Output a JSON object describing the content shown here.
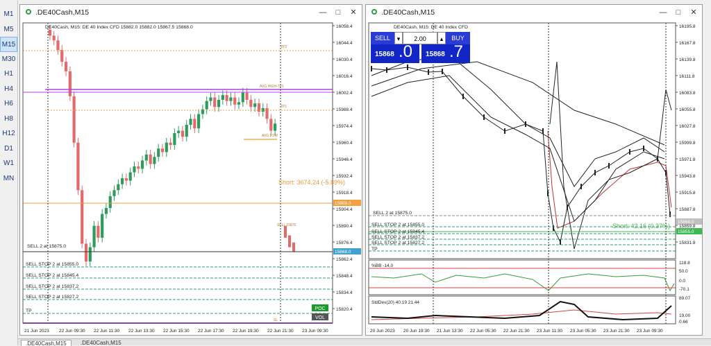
{
  "timeframes": [
    {
      "label": "M1",
      "selected": false
    },
    {
      "label": "M5",
      "selected": false
    },
    {
      "label": "M15",
      "selected": true
    },
    {
      "label": "M30",
      "selected": false
    },
    {
      "label": "H1",
      "selected": false
    },
    {
      "label": "H4",
      "selected": false
    },
    {
      "label": "H6",
      "selected": false
    },
    {
      "label": "H8",
      "selected": false
    },
    {
      "label": "H12",
      "selected": false
    },
    {
      "label": "D1",
      "selected": false
    },
    {
      "label": "W1",
      "selected": false
    },
    {
      "label": "MN",
      "selected": false
    }
  ],
  "window1": {
    "title": ".DE40Cash,M15",
    "info": "DE40Cash, M15:  DE 40 Index CFD   15882.0  15882.0  15867.5  15868.0",
    "price_axis": [
      "16058.4",
      "16044.4",
      "16030.4",
      "16016.4",
      "16002.4",
      "15988.4",
      "15974.4",
      "15960.4",
      "15946.4",
      "15932.4",
      "15918.4",
      "15904.4",
      "15890.4",
      "15876.4",
      "15862.4",
      "15848.4",
      "15834.4",
      "15820.4"
    ],
    "current_price": "15868.0",
    "short_tag": "15909.0",
    "short_label": "Short: 3674.24  (-5.89%)",
    "sell_label": "SELL 2 at 15875.0",
    "orders": [
      "SELL STOP 2 at 15855.0",
      "SELL STOP 2 at 15845.4",
      "SELL STOP 2 at 15837.2",
      "SELL STOP 2 at 15827.2",
      "TP"
    ],
    "tiny_labels": [
      "TP2",
      "AVG.HIGH-TP1",
      "TP1",
      "AVG.LOW",
      "SELL 15875",
      "SL"
    ],
    "badges": {
      "poc": "POC",
      "vol": "VOL"
    },
    "time_axis": [
      "21 Jun 2023",
      "22 Jun 09:30",
      "22 Jun 11:30",
      "22 Jun 13:30",
      "22 Jun 15:30",
      "22 Jun 17:30",
      "22 Jun 19:30",
      "22 Jun 21:30",
      "23 Jun 09:30"
    ],
    "colors": {
      "bull": "#2e9b5e",
      "bear": "#e46a6a",
      "purple": "#b040e0",
      "orange": "#e8a040",
      "teal": "#40c0a0"
    }
  },
  "window2": {
    "title": ".DE40Cash,M15",
    "info": "DE40Cash, M15:  DE 40 Index CFD",
    "price_axis": [
      "16195.8",
      "16167.8",
      "16139.8",
      "16111.8",
      "16083.8",
      "16055.8",
      "16027.8",
      "15999.8",
      "15971.8",
      "15943.8",
      "15915.8",
      "15887.8",
      "15859.8",
      "15831.8"
    ],
    "current_price": "15868.0",
    "short_tag": "15855.0",
    "short_label": "Short: 42.16  (0.37%)",
    "sell_label": "SELL 2 at 15875.0",
    "orders": [
      "SELL STOP 2 at 15855.0",
      "SELL STOP 2 at 15845.4",
      "SELL STOP 2 at 15837.2",
      "SELL STOP 2 at 15827.2",
      "TP"
    ],
    "trade": {
      "sell": "SELL",
      "buy": "BUY",
      "volume": "2.00",
      "sell_small": "15868",
      "sell_big": ".0",
      "buy_small": "15868",
      "buy_big": ".7"
    },
    "bb": {
      "label": "%BB -14.0",
      "axis": [
        "118.8",
        "50.0",
        "0.0",
        "-70.1"
      ]
    },
    "sd": {
      "label": "StdDev(20) 40.19 21.44",
      "axis": [
        "89.07",
        "19.00",
        "0.66"
      ]
    },
    "time_axis": [
      "20 Jun 2023",
      "20 Jun 19:30",
      "21 Jun 13:30",
      "22 Jun 05:30",
      "22 Jun 21:30",
      "23 Jun 11:30",
      "23 Jun 05:30",
      "23 Jun 21:30",
      "23 Jun 09:30"
    ]
  },
  "tabs": [
    ".DE40Cash,M15",
    ".DE40Cash,M15"
  ]
}
